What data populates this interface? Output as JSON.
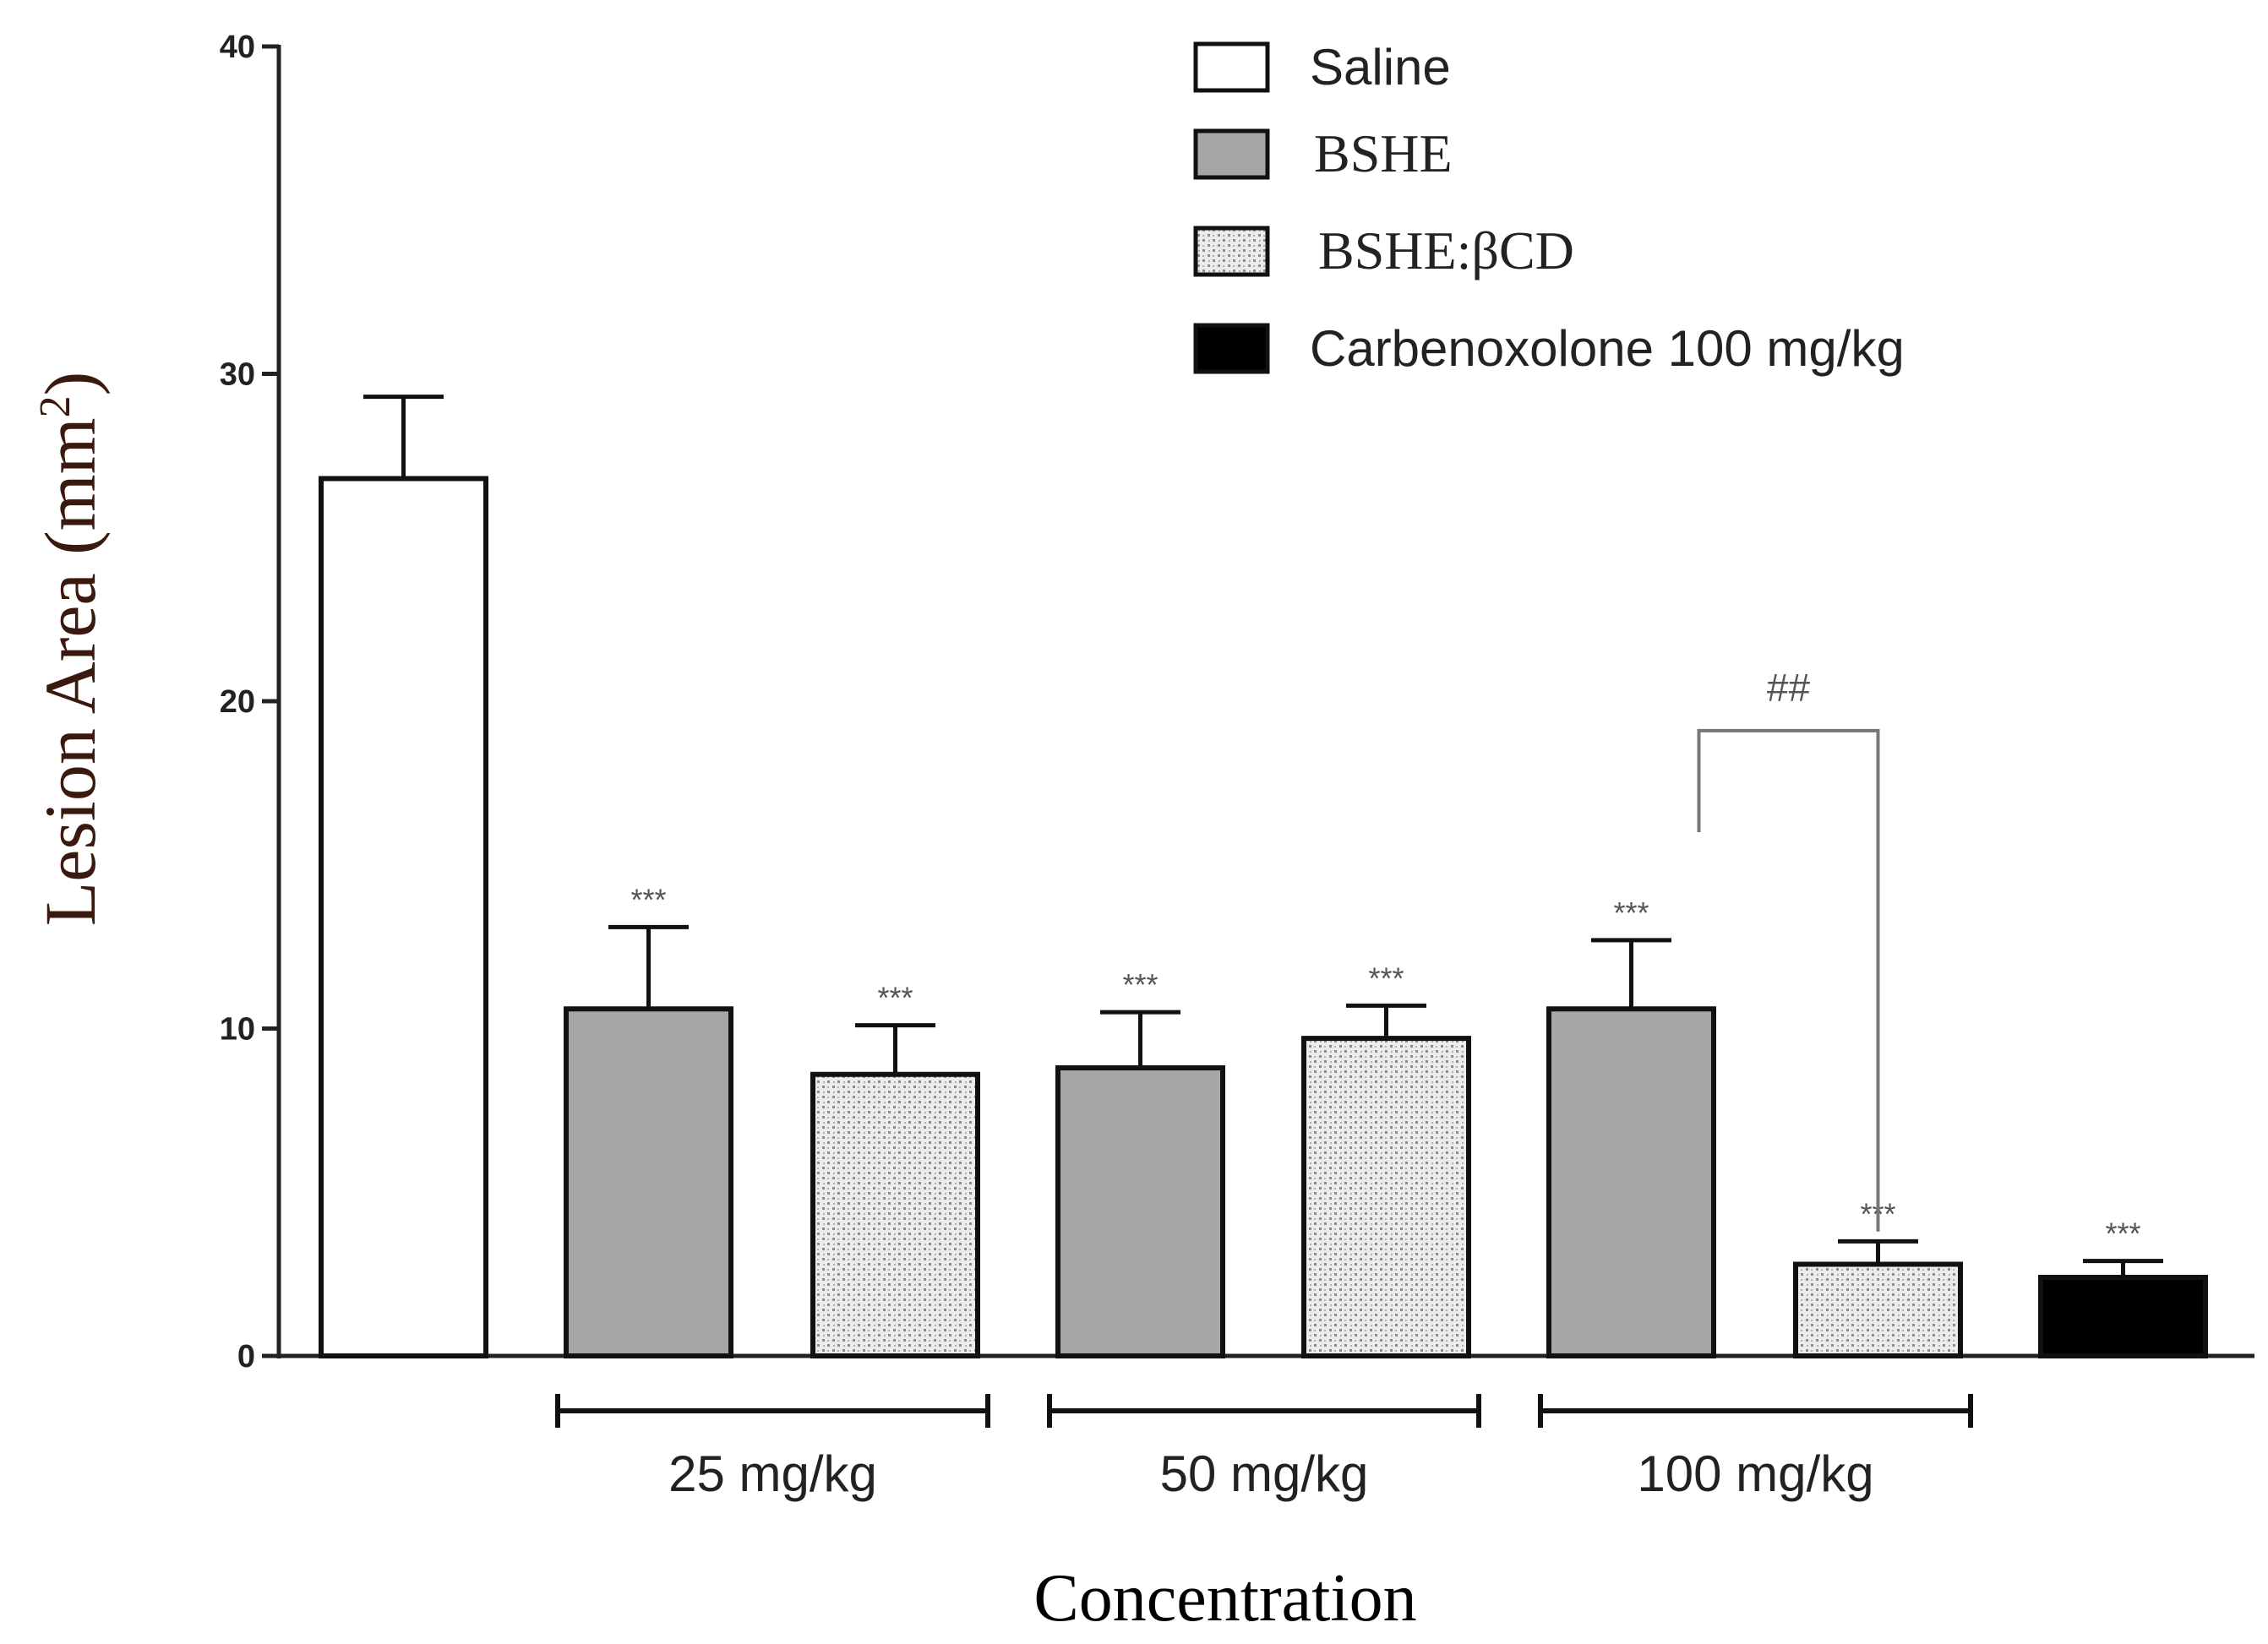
{
  "chart_data": {
    "type": "bar",
    "title": "",
    "ylabel_main": "Lesion Area (mm",
    "ylabel_sup": "2",
    "ylabel_end": ")",
    "xlabel": "Concentration",
    "ylim": [
      0,
      40
    ],
    "yticks": [
      "0",
      "10",
      "20",
      "30",
      "40"
    ],
    "legend_position": "top-right",
    "legend": [
      {
        "label": "Saline",
        "fill": "white"
      },
      {
        "label": "BSHE",
        "fill": "gray"
      },
      {
        "label": "BSHE:βCD",
        "fill": "dotted"
      },
      {
        "label": "Carbenoxolone 100 mg/kg",
        "fill": "black"
      }
    ],
    "bars": [
      {
        "series": "Saline",
        "value": 26.8,
        "error": 2.5,
        "mark": ""
      },
      {
        "series": "BSHE",
        "value": 10.6,
        "error": 2.5,
        "mark": "***"
      },
      {
        "series": "BSHE:βCD",
        "value": 8.6,
        "error": 1.5,
        "mark": "***"
      },
      {
        "series": "BSHE",
        "value": 8.8,
        "error": 1.7,
        "mark": "***"
      },
      {
        "series": "BSHE:βCD",
        "value": 9.7,
        "error": 1.0,
        "mark": "***"
      },
      {
        "series": "BSHE",
        "value": 10.6,
        "error": 2.1,
        "mark": "***"
      },
      {
        "series": "BSHE:βCD",
        "value": 2.8,
        "error": 0.7,
        "mark": "***"
      },
      {
        "series": "Carbenoxolone 100 mg/kg",
        "value": 2.4,
        "error": 0.5,
        "mark": "***"
      }
    ],
    "groups": [
      {
        "label": "25 mg/kg",
        "bars": [
          1,
          2
        ]
      },
      {
        "label": "50 mg/kg",
        "bars": [
          3,
          4
        ]
      },
      {
        "label": "100 mg/kg",
        "bars": [
          5,
          6
        ]
      }
    ],
    "comparison": {
      "from_bar": 5,
      "to_bar": 6,
      "label": "##",
      "y": 19.1
    }
  },
  "colors": {
    "axis": "#222222",
    "white_bar": "#ffffff",
    "gray_bar": "#a6a6a6",
    "black_bar": "#000000",
    "dot_bg": "#ececec",
    "dot_fg": "#8c8c8c",
    "ylabel": "#3a1a0e",
    "mark": "#555555",
    "bracket": "#777777"
  }
}
